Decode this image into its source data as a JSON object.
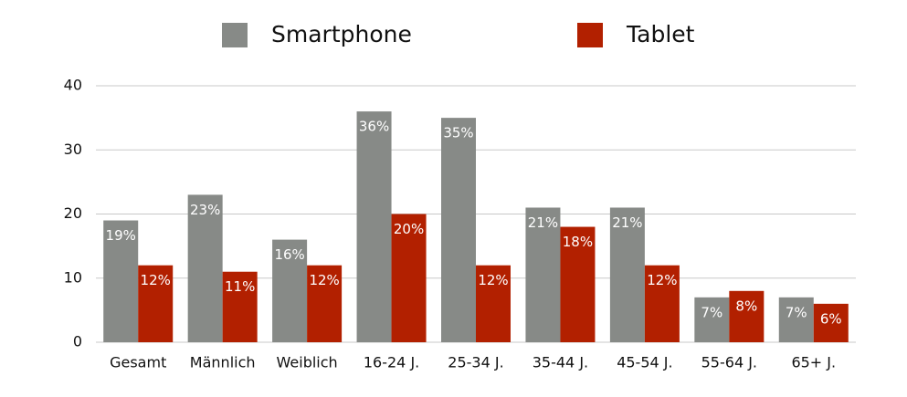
{
  "chart_data": {
    "type": "bar",
    "categories": [
      "Gesamt",
      "Männlich",
      "Weiblich",
      "16-24 J.",
      "25-34 J.",
      "35-44 J.",
      "45-54 J.",
      "55-64 J.",
      "65+ J."
    ],
    "series": [
      {
        "name": "Smartphone",
        "color": "#878a87",
        "values": [
          19,
          23,
          16,
          36,
          35,
          21,
          21,
          7,
          7
        ],
        "value_labels": [
          "19%",
          "23%",
          "16%",
          "36%",
          "35%",
          "21%",
          "21%",
          "7%",
          "7%"
        ]
      },
      {
        "name": "Tablet",
        "color": "#b22000",
        "values": [
          12,
          11,
          12,
          20,
          12,
          18,
          12,
          8,
          6
        ],
        "value_labels": [
          "12%",
          "11%",
          "12%",
          "20%",
          "12%",
          "18%",
          "12%",
          "8%",
          "6%"
        ]
      }
    ],
    "ylim": [
      0,
      40
    ],
    "yticks": [
      0,
      10,
      20,
      30,
      40
    ],
    "grid": true,
    "legend": "top"
  }
}
